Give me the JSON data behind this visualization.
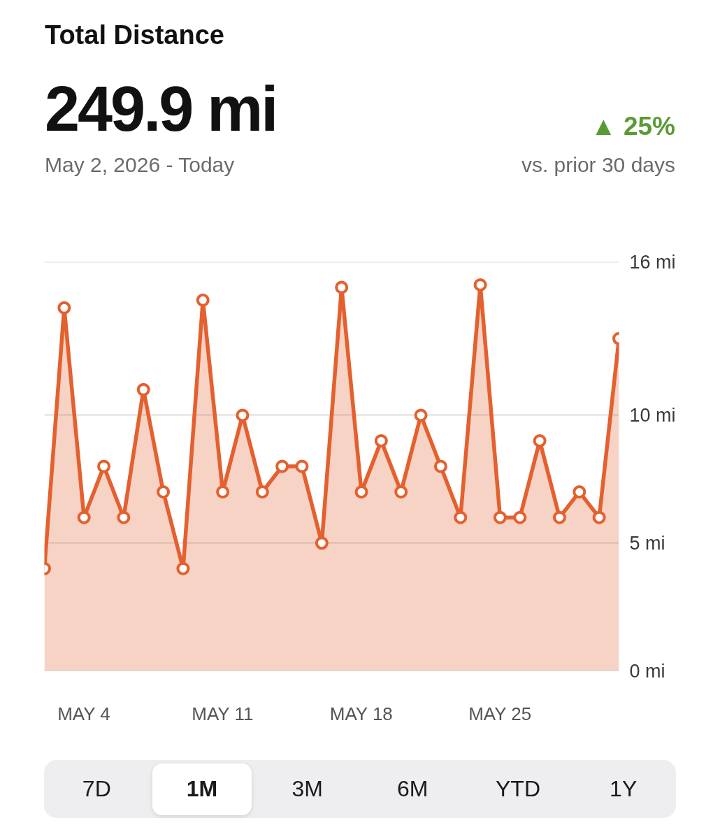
{
  "chart_data": {
    "type": "area",
    "title": "Total Distance",
    "subtitle": "May 2, 2026 - Today",
    "annotations": [
      "249.9 mi",
      "▲ 25%",
      "vs. prior 30 days",
      "7D",
      "1M",
      "3M",
      "6M",
      "YTD",
      "1Y"
    ],
    "x": [
      "2026-05-02",
      "2026-05-03",
      "2026-05-04",
      "2026-05-05",
      "2026-05-06",
      "2026-05-07",
      "2026-05-08",
      "2026-05-09",
      "2026-05-10",
      "2026-05-11",
      "2026-05-12",
      "2026-05-13",
      "2026-05-14",
      "2026-05-15",
      "2026-05-16",
      "2026-05-17",
      "2026-05-18",
      "2026-05-19",
      "2026-05-20",
      "2026-05-21",
      "2026-05-22",
      "2026-05-23",
      "2026-05-24",
      "2026-05-25",
      "2026-05-26",
      "2026-05-27",
      "2026-05-28",
      "2026-05-29",
      "2026-05-30",
      "2026-05-31"
    ],
    "values": [
      4,
      14.2,
      6,
      8,
      6,
      11,
      7,
      4,
      14.5,
      7,
      10,
      7,
      8,
      8,
      5,
      15,
      7,
      9,
      7,
      10,
      8,
      6,
      15.1,
      6,
      6,
      9,
      6,
      7,
      6,
      13
    ],
    "color": "#e4602e",
    "marker": "circle",
    "line_style": "solid",
    "grid": "y",
    "xlim": [
      "2026-05-02",
      "2026-05-31"
    ],
    "xticks": [
      {
        "value": "2026-05-04",
        "label": "MAY 4"
      },
      {
        "value": "2026-05-11",
        "label": "MAY 11"
      },
      {
        "value": "2026-05-18",
        "label": "MAY 18"
      },
      {
        "value": "2026-05-25",
        "label": "MAY 25"
      }
    ],
    "ylim": [
      0,
      16
    ],
    "yticks": [
      {
        "value": 0,
        "label": "0 mi"
      },
      {
        "value": 5,
        "label": "5 mi"
      },
      {
        "value": 10,
        "label": "10 mi"
      },
      {
        "value": 16,
        "label": "16 mi"
      }
    ]
  }
}
